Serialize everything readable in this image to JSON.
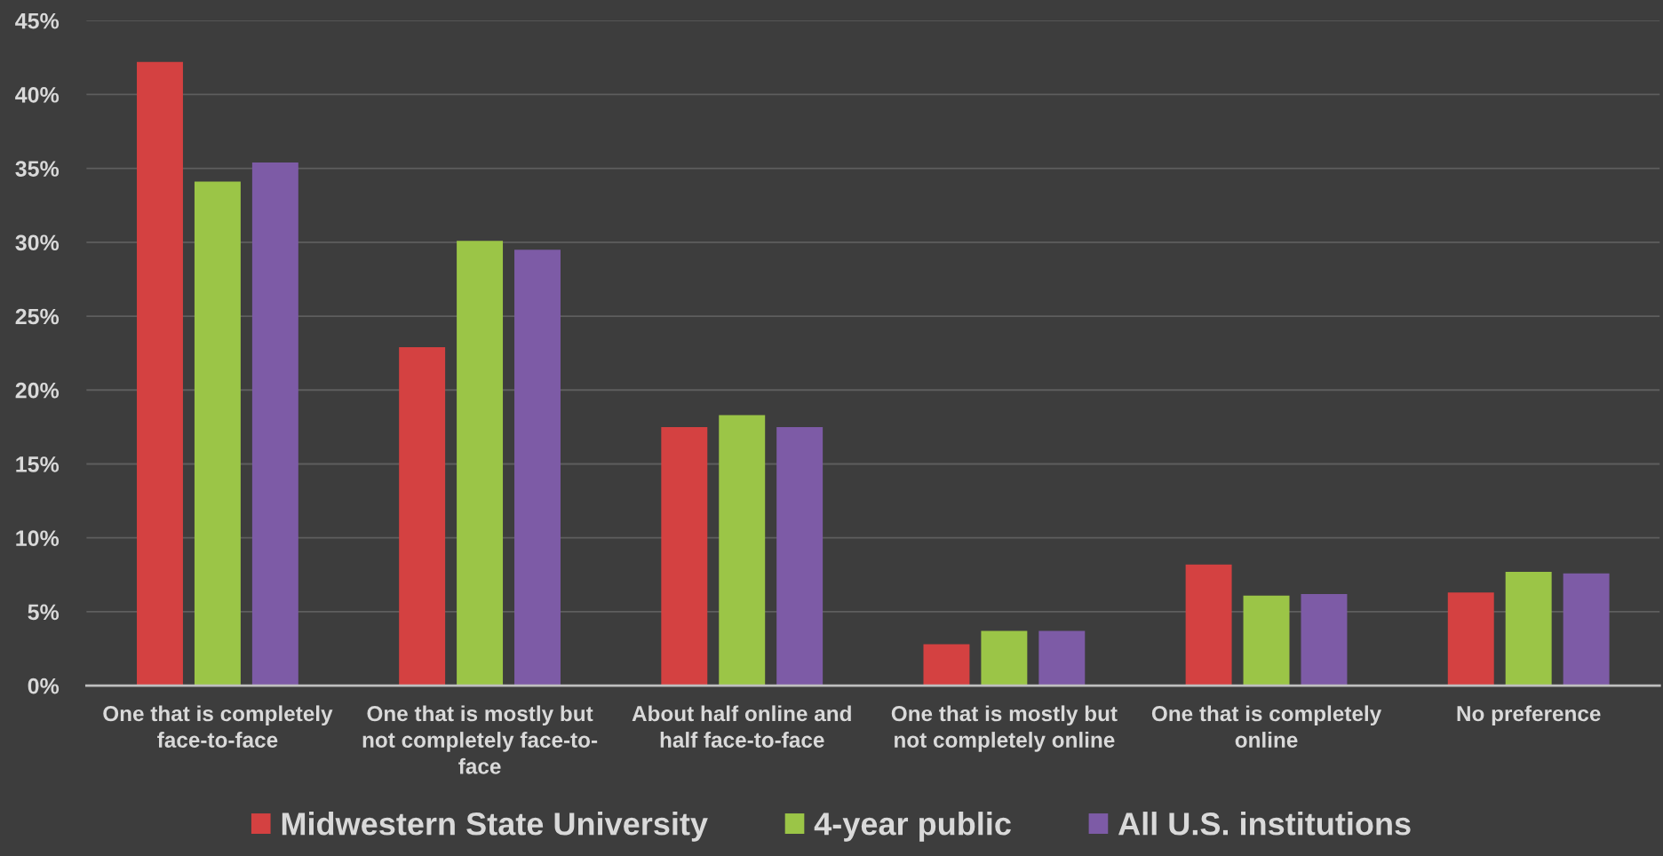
{
  "chart_data": {
    "type": "bar",
    "categories": [
      "One that is completely face-to-face",
      "One that is mostly but not completely face-to-face",
      "About half online and half face-to-face",
      "One that is mostly but not completely online",
      "One that is completely online",
      "No preference"
    ],
    "series": [
      {
        "name": "Midwestern State University",
        "color": "#d44141",
        "values": [
          42.2,
          22.9,
          17.5,
          2.8,
          8.2,
          6.3
        ]
      },
      {
        "name": "4-year public",
        "color": "#9bc547",
        "values": [
          34.1,
          30.1,
          18.3,
          3.7,
          6.1,
          7.7
        ]
      },
      {
        "name": "All U.S. institutions",
        "color": "#7d5ba6",
        "values": [
          35.4,
          29.5,
          17.5,
          3.7,
          6.2,
          7.6
        ]
      }
    ],
    "ylim": [
      0,
      45
    ],
    "yticks": [
      {
        "value": 0,
        "label": "0%"
      },
      {
        "value": 5,
        "label": "5%"
      },
      {
        "value": 10,
        "label": "10%"
      },
      {
        "value": 15,
        "label": "15%"
      },
      {
        "value": 20,
        "label": "20%"
      },
      {
        "value": 25,
        "label": "25%"
      },
      {
        "value": 30,
        "label": "30%"
      },
      {
        "value": 35,
        "label": "35%"
      },
      {
        "value": 40,
        "label": "40%"
      },
      {
        "value": 45,
        "label": "45%"
      }
    ],
    "grid": "y",
    "legend": "bottom"
  }
}
